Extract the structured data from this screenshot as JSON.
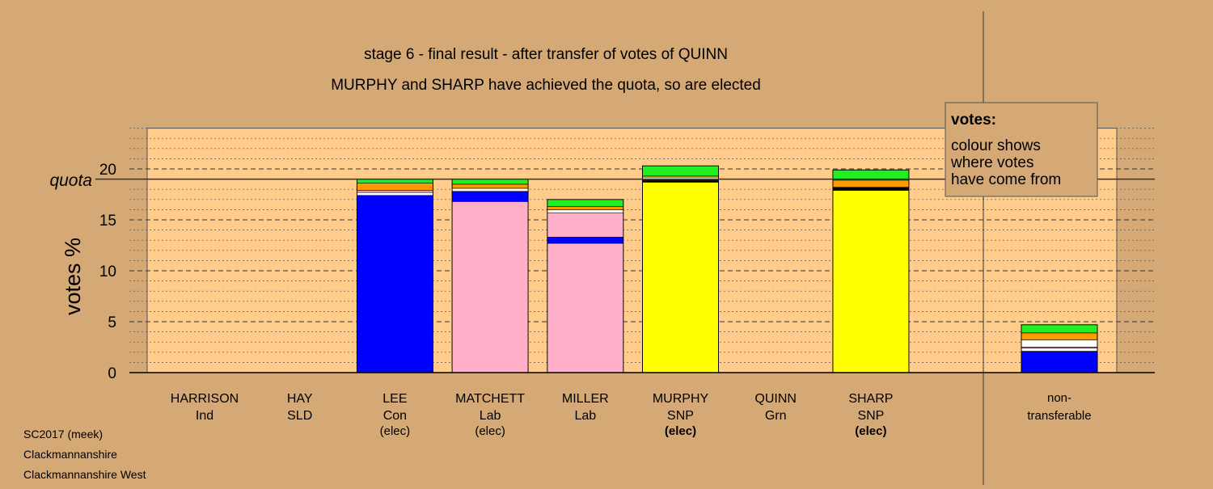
{
  "title_line1": "stage 6 - final result - after transfer of votes of QUINN",
  "title_line2": "MURPHY and SHARP have achieved the quota, so are elected",
  "quota_label": "quota",
  "legend": {
    "title": "votes:",
    "lines": [
      "colour shows",
      "where votes",
      "have come from"
    ]
  },
  "footer": [
    "SC2017 (meek)",
    "Clackmannanshire",
    "Clackmannanshire West"
  ],
  "colors": {
    "background": "#d4a976",
    "plot": "#ffcc8c",
    "con": "#0000ff",
    "lab": "#ffb0c8",
    "snp": "#ffff00",
    "orange": "#ff9900",
    "white": "#ffffff",
    "green": "#22ee22",
    "black": "#000000"
  },
  "chart_data": {
    "type": "bar",
    "stacked": true,
    "ylabel": "votes %",
    "ylim": [
      0,
      24
    ],
    "yticks": [
      0,
      5,
      10,
      15,
      20
    ],
    "quota": 19.0,
    "legend_position": "top-right",
    "categories": [
      {
        "name": "HARRISON",
        "party": "Ind",
        "status": "",
        "segments": []
      },
      {
        "name": "HAY",
        "party": "SLD",
        "status": "",
        "segments": []
      },
      {
        "name": "LEE",
        "party": "Con",
        "status": "(elec)",
        "segments": [
          {
            "source": "con",
            "value": 17.4
          },
          {
            "source": "white",
            "value": 0.3
          },
          {
            "source": "lab",
            "value": 0.2
          },
          {
            "source": "orange",
            "value": 0.7
          },
          {
            "source": "green",
            "value": 0.4
          }
        ]
      },
      {
        "name": "MATCHETT",
        "party": "Lab",
        "status": "(elec)",
        "segments": [
          {
            "source": "lab",
            "value": 16.8
          },
          {
            "source": "con",
            "value": 1.0
          },
          {
            "source": "white",
            "value": 0.3
          },
          {
            "source": "orange",
            "value": 0.4
          },
          {
            "source": "green",
            "value": 0.5
          }
        ]
      },
      {
        "name": "MILLER",
        "party": "Lab",
        "status": "",
        "segments": [
          {
            "source": "lab",
            "value": 12.7
          },
          {
            "source": "con",
            "value": 0.6
          },
          {
            "source": "lab",
            "value": 2.4
          },
          {
            "source": "white",
            "value": 0.3
          },
          {
            "source": "orange",
            "value": 0.3
          },
          {
            "source": "green",
            "value": 0.7
          }
        ]
      },
      {
        "name": "MURPHY",
        "party": "SNP",
        "status": "(elec)",
        "segments": [
          {
            "source": "snp",
            "value": 18.7
          },
          {
            "source": "black",
            "value": 0.2
          },
          {
            "source": "white",
            "value": 0.3
          },
          {
            "source": "snp",
            "value": 0.1
          },
          {
            "source": "green",
            "value": 1.0
          }
        ]
      },
      {
        "name": "QUINN",
        "party": "Grn",
        "status": "",
        "segments": []
      },
      {
        "name": "SHARP",
        "party": "SNP",
        "status": "(elec)",
        "segments": [
          {
            "source": "snp",
            "value": 17.9
          },
          {
            "source": "black",
            "value": 0.3
          },
          {
            "source": "orange",
            "value": 0.7
          },
          {
            "source": "green",
            "value": 1.0
          }
        ]
      }
    ],
    "nontransferable": {
      "label_lines": [
        "non-",
        "transferable"
      ],
      "segments": [
        {
          "source": "con",
          "value": 2.1
        },
        {
          "source": "white",
          "value": 0.3
        },
        {
          "source": "lab",
          "value": 0.1
        },
        {
          "source": "white",
          "value": 0.7
        },
        {
          "source": "orange",
          "value": 0.7
        },
        {
          "source": "green",
          "value": 0.8
        }
      ]
    }
  }
}
